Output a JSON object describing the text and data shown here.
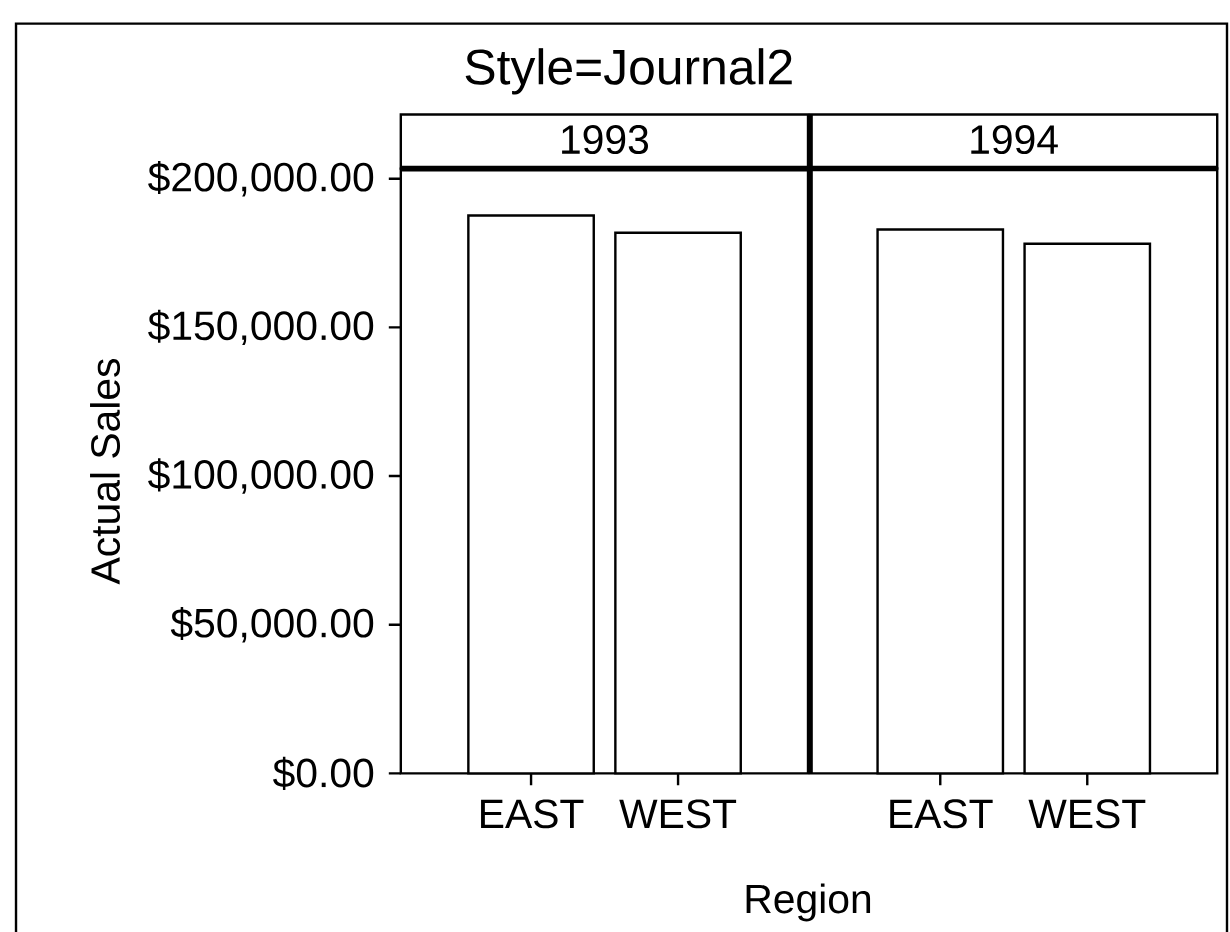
{
  "chart_data": [
    {
      "type": "bar",
      "title": "Style=Journal2",
      "subtitle": "1993",
      "xlabel": "Region",
      "ylabel": "Actual Sales",
      "categories": [
        "EAST",
        "WEST"
      ],
      "series": [
        {
          "color": "#ffffff",
          "values": [
            187600,
            181800
          ]
        }
      ],
      "ylim": [
        0,
        203400
      ],
      "yticks": [
        {
          "value": 0,
          "label": "$0.00"
        },
        {
          "value": 50000,
          "label": "$50,000.00"
        },
        {
          "value": 100000,
          "label": "$100,000.00"
        },
        {
          "value": 150000,
          "label": "$150,000.00"
        },
        {
          "value": 200000,
          "label": "$200,000.00"
        }
      ]
    },
    {
      "type": "bar",
      "subtitle": "1994",
      "categories": [
        "EAST",
        "WEST"
      ],
      "series": [
        {
          "color": "#ffffff",
          "values": [
            182900,
            178100
          ]
        }
      ],
      "ylim": [
        0,
        203400
      ],
      "tick_labels": "x"
    }
  ]
}
